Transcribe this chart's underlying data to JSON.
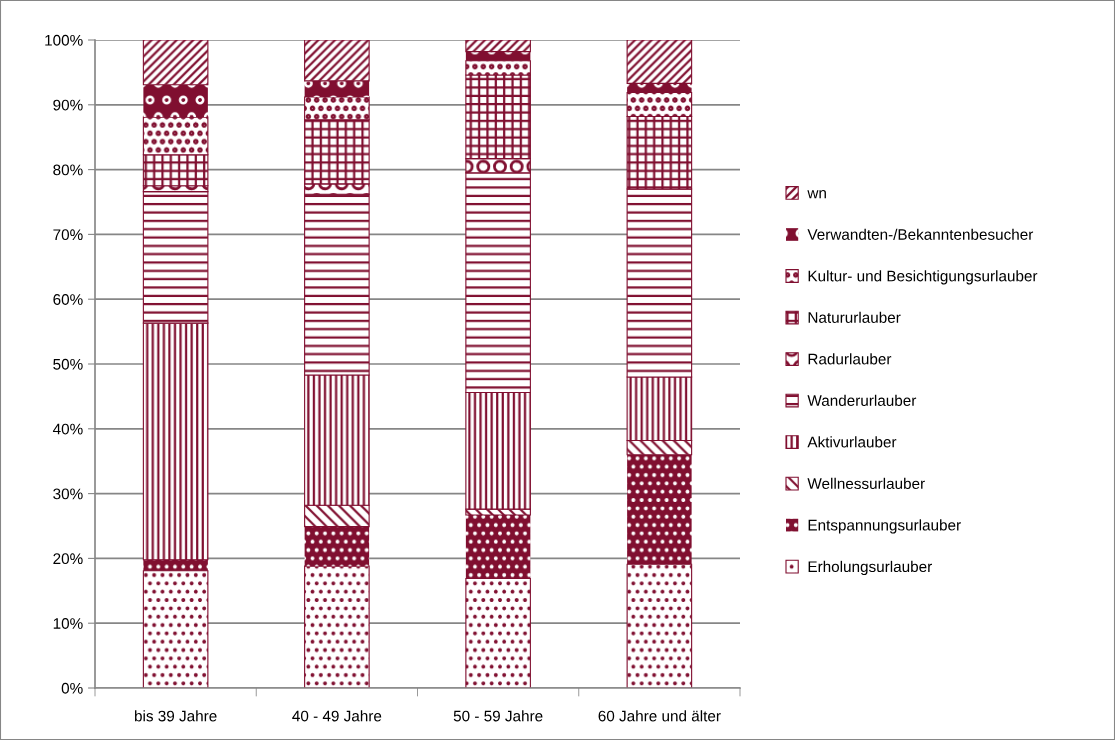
{
  "chart_data": {
    "type": "bar",
    "stacked": true,
    "categories": [
      "bis 39 Jahre",
      "40 - 49 Jahre",
      "50 - 59 Jahre",
      "60 Jahre und älter"
    ],
    "ylim": [
      0,
      100
    ],
    "yticks": [
      {
        "value": 0,
        "label": "0%"
      },
      {
        "value": 10,
        "label": "10%"
      },
      {
        "value": 20,
        "label": "20%"
      },
      {
        "value": 30,
        "label": "30%"
      },
      {
        "value": 40,
        "label": "40%"
      },
      {
        "value": 50,
        "label": "50%"
      },
      {
        "value": 60,
        "label": "60%"
      },
      {
        "value": 70,
        "label": "70%"
      },
      {
        "value": 80,
        "label": "80%"
      },
      {
        "value": 90,
        "label": "90%"
      },
      {
        "value": 100,
        "label": "100%"
      }
    ],
    "grid": "y",
    "legend": "right",
    "series": [
      {
        "name": "Erholungsurlauber",
        "color": "#800f30",
        "values": [
          18.1,
          18.8,
          16.9,
          19.1
        ]
      },
      {
        "name": "Entspannungsurlauber",
        "color": "#800f30",
        "values": [
          1.7,
          6.1,
          9.8,
          16.9
        ]
      },
      {
        "name": "Wellnessurlauber",
        "color": "#800f30",
        "values": [
          0,
          3.3,
          0.9,
          2.2
        ]
      },
      {
        "name": "Aktivurlauber",
        "color": "#800f30",
        "values": [
          36.5,
          20.1,
          18.0,
          9.8
        ]
      },
      {
        "name": "Wanderurlauber",
        "color": "#800f30",
        "values": [
          20.3,
          27.9,
          33.9,
          29.0
        ]
      },
      {
        "name": "Radurlauber",
        "color": "#800f30",
        "values": [
          0.9,
          1.6,
          2.2,
          0
        ]
      },
      {
        "name": "Natururlauber",
        "color": "#800f30",
        "values": [
          4.8,
          9.9,
          12.9,
          11.2
        ]
      },
      {
        "name": "Kultur- und Besichtigungsurlauber",
        "color": "#800f30",
        "values": [
          5.8,
          3.5,
          2.2,
          3.7
        ]
      },
      {
        "name": "Verwandten-/Bekanntenbesucher",
        "color": "#800f30",
        "values": [
          5.0,
          2.5,
          1.4,
          1.4
        ]
      },
      {
        "name": "wn",
        "color": "#800f30",
        "values": [
          6.9,
          6.3,
          1.8,
          6.7
        ]
      }
    ]
  }
}
